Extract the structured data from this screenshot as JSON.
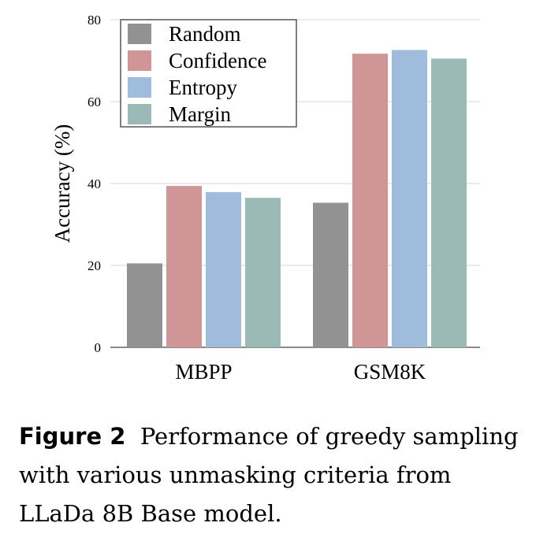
{
  "chart_data": {
    "type": "bar",
    "categories": [
      "MBPP",
      "GSM8K"
    ],
    "series": [
      {
        "name": "Random",
        "values": [
          20.5,
          35.3
        ],
        "color": "#929292"
      },
      {
        "name": "Confidence",
        "values": [
          39.4,
          71.7
        ],
        "color": "#cf9695"
      },
      {
        "name": "Entropy",
        "values": [
          37.9,
          72.6
        ],
        "color": "#9fbcdc"
      },
      {
        "name": "Margin",
        "values": [
          36.5,
          70.5
        ],
        "color": "#9bb9b5"
      }
    ],
    "ylabel": "Accuracy (%)",
    "ylim": [
      0,
      80
    ],
    "yticks": [
      0,
      20,
      40,
      60,
      80
    ],
    "grid": true,
    "legend_position": "top-left"
  },
  "caption": {
    "label": "Figure 2",
    "text": "Performance of greedy sampling with various unmasking criteria from LLaDa 8B Base model."
  }
}
